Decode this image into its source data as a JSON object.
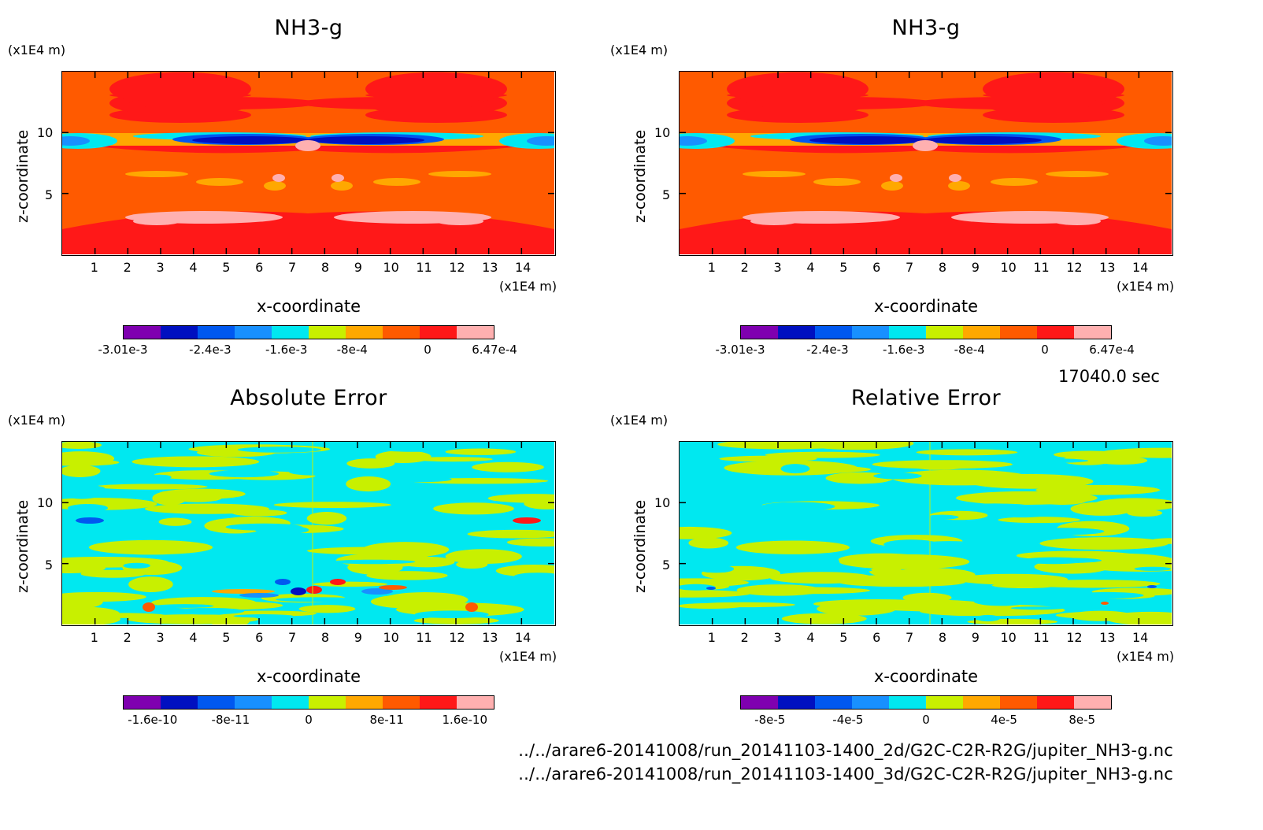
{
  "palette": [
    "#7f00b0",
    "#0010c0",
    "#0058f0",
    "#1890ff",
    "#00e8f0",
    "#c8f000",
    "#ffa800",
    "#ff5a00",
    "#ff1818",
    "#ffb0b0"
  ],
  "time_label": "17040.0 sec",
  "footer": [
    "../../arare6-20141008/run_20141103-1400_2d/G2C-C2R-R2G/jupiter_NH3-g.nc",
    "../../arare6-20141008/run_20141103-1400_3d/G2C-C2R-R2G/jupiter_NH3-g.nc"
  ],
  "chart_data": [
    {
      "type": "heatmap",
      "title": "NH3-g",
      "xlabel": "x-coordinate",
      "ylabel": "z-coordinate",
      "x_unit": "(x1E4 m)",
      "y_unit": "(x1E4 m)",
      "x_ticks": [
        "1",
        "2",
        "3",
        "4",
        "5",
        "6",
        "7",
        "8",
        "9",
        "10",
        "11",
        "12",
        "13",
        "14"
      ],
      "y_ticks": [
        "5",
        "10"
      ],
      "xlim": [
        0,
        15
      ],
      "ylim": [
        0,
        15
      ],
      "colorbar_levels": [
        -0.00301,
        -0.0024,
        -0.0016,
        -0.0008,
        0,
        0.000647
      ],
      "colorbar_labels": [
        "-3.01e-3",
        "-2.4e-3",
        "-1.6e-3",
        "-8e-4",
        "0",
        "6.47e-4"
      ],
      "pattern": "field"
    },
    {
      "type": "heatmap",
      "title": "NH3-g",
      "xlabel": "x-coordinate",
      "ylabel": "z-coordinate",
      "x_unit": "(x1E4 m)",
      "y_unit": "(x1E4 m)",
      "x_ticks": [
        "1",
        "2",
        "3",
        "4",
        "5",
        "6",
        "7",
        "8",
        "9",
        "10",
        "11",
        "12",
        "13",
        "14"
      ],
      "y_ticks": [
        "5",
        "10"
      ],
      "xlim": [
        0,
        15
      ],
      "ylim": [
        0,
        15
      ],
      "colorbar_levels": [
        -0.00301,
        -0.0024,
        -0.0016,
        -0.0008,
        0,
        0.000647
      ],
      "colorbar_labels": [
        "-3.01e-3",
        "-2.4e-3",
        "-1.6e-3",
        "-8e-4",
        "0",
        "6.47e-4"
      ],
      "pattern": "field"
    },
    {
      "type": "heatmap",
      "title": "Absolute Error",
      "xlabel": "x-coordinate",
      "ylabel": "z-coordinate",
      "x_unit": "(x1E4 m)",
      "y_unit": "(x1E4 m)",
      "x_ticks": [
        "1",
        "2",
        "3",
        "4",
        "5",
        "6",
        "7",
        "8",
        "9",
        "10",
        "11",
        "12",
        "13",
        "14"
      ],
      "y_ticks": [
        "5",
        "10"
      ],
      "xlim": [
        0,
        15
      ],
      "ylim": [
        0,
        15
      ],
      "colorbar_levels": [
        -1.6e-10,
        -8e-11,
        0,
        8e-11,
        1.6e-10
      ],
      "colorbar_labels": [
        "-1.6e-10",
        "-8e-11",
        "0",
        "8e-11",
        "1.6e-10"
      ],
      "pattern": "noise-strong"
    },
    {
      "type": "heatmap",
      "title": "Relative Error",
      "xlabel": "x-coordinate",
      "ylabel": "z-coordinate",
      "x_unit": "(x1E4 m)",
      "y_unit": "(x1E4 m)",
      "x_ticks": [
        "1",
        "2",
        "3",
        "4",
        "5",
        "6",
        "7",
        "8",
        "9",
        "10",
        "11",
        "12",
        "13",
        "14"
      ],
      "y_ticks": [
        "5",
        "10"
      ],
      "xlim": [
        0,
        15
      ],
      "ylim": [
        0,
        15
      ],
      "colorbar_levels": [
        -8e-05,
        -4e-05,
        0,
        4e-05,
        8e-05
      ],
      "colorbar_labels": [
        "-8e-5",
        "-4e-5",
        "0",
        "4e-5",
        "8e-5"
      ],
      "pattern": "noise-weak"
    }
  ]
}
